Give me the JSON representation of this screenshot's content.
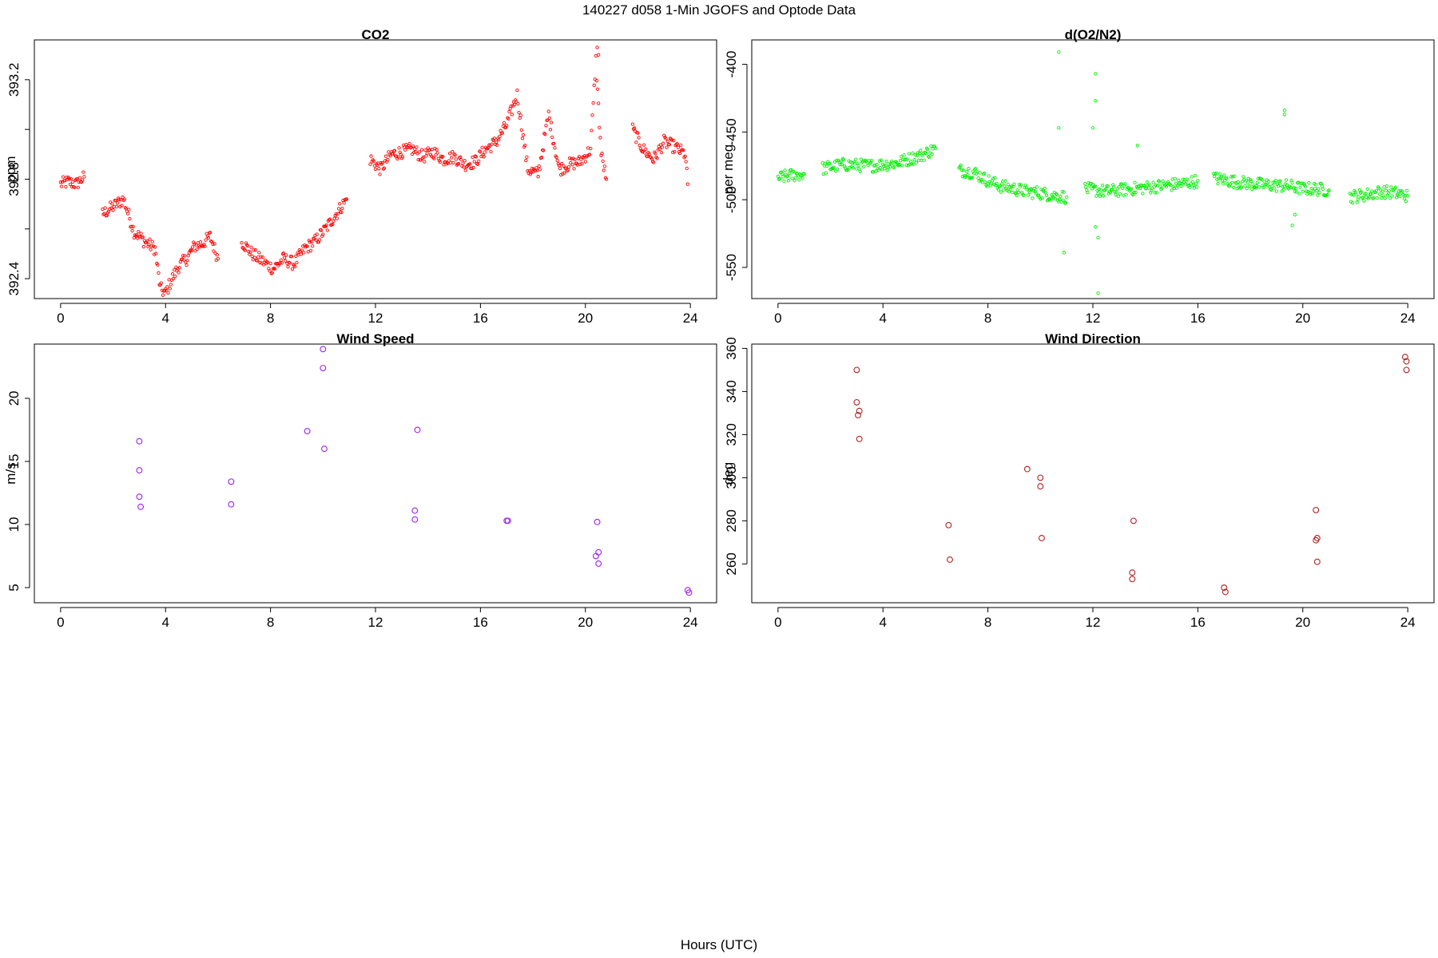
{
  "figure": {
    "title": "140227   d058   1-Min  JGOFS and Optode Data",
    "xlabel": "Hours (UTC)"
  },
  "chart_data": [
    {
      "type": "scatter",
      "title": "CO2",
      "ylabel": "ppm",
      "color": "#ff0000",
      "marker": "open-circle-small",
      "xlim": [
        -1,
        25
      ],
      "ylim": [
        392.32,
        393.36
      ],
      "xticks": [
        0,
        4,
        8,
        12,
        16,
        20,
        24
      ],
      "yticks": [
        392.4,
        392.6,
        392.8,
        393.0,
        393.2
      ],
      "ytick_labels": [
        "392.4",
        "",
        "392.8",
        "",
        "393.2"
      ],
      "series": [
        {
          "segments": [
            {
              "x": [
                0.0,
                0.3,
                0.6,
                0.9
              ],
              "y": [
                392.78,
                392.79,
                392.78,
                392.81
              ]
            },
            {
              "x": [
                1.6,
                2.0,
                2.4,
                2.8,
                3.2,
                3.6,
                3.8,
                4.0,
                4.2,
                4.5,
                4.8,
                5.1,
                5.4,
                5.7,
                6.0
              ],
              "y": [
                392.66,
                392.69,
                392.72,
                392.59,
                392.55,
                392.52,
                392.36,
                392.34,
                392.39,
                392.45,
                392.48,
                392.53,
                392.54,
                392.57,
                392.48
              ]
            },
            {
              "x": [
                6.9,
                7.3,
                7.7,
                8.1,
                8.5,
                8.9,
                9.3,
                9.7,
                10.1,
                10.5,
                10.9
              ],
              "y": [
                392.55,
                392.5,
                392.47,
                392.44,
                392.48,
                392.46,
                392.52,
                392.55,
                392.6,
                392.66,
                392.72
              ]
            },
            {
              "x": [
                11.8,
                12.2,
                12.6,
                13.0,
                13.4,
                13.8,
                14.2,
                14.6,
                15.0,
                15.4,
                15.8,
                16.2,
                16.6,
                17.0,
                17.4,
                17.8,
                18.2,
                18.6,
                19.0,
                19.4,
                19.8,
                20.2,
                20.4,
                20.6,
                20.8
              ],
              "y": [
                392.88,
                392.84,
                392.9,
                392.91,
                392.92,
                392.89,
                392.91,
                392.88,
                392.89,
                392.86,
                392.87,
                392.92,
                392.95,
                393.02,
                393.14,
                392.84,
                392.82,
                393.06,
                392.84,
                392.86,
                392.87,
                392.92,
                393.28,
                392.9,
                392.8
              ]
            },
            {
              "x": [
                21.8,
                22.2,
                22.6,
                23.0,
                23.4,
                23.8,
                23.9
              ],
              "y": [
                393.0,
                392.92,
                392.88,
                392.95,
                392.93,
                392.9,
                392.78
              ]
            }
          ],
          "outliers": {
            "x": [
              20.45,
              20.5
            ],
            "y": [
              393.33,
              393.3
            ]
          }
        }
      ]
    },
    {
      "type": "scatter",
      "title": "d(O2/N2)",
      "ylabel": "per meg",
      "color": "#00ee00",
      "marker": "open-circle-small",
      "xlim": [
        -1,
        25
      ],
      "ylim": [
        -573,
        -382
      ],
      "xticks": [
        0,
        4,
        8,
        12,
        16,
        20,
        24
      ],
      "yticks": [
        -550,
        -500,
        -450,
        -400
      ],
      "ytick_labels": [
        "-550",
        "-500",
        "-450",
        "-400"
      ],
      "series": [
        {
          "segments": [
            {
              "x": [
                0.0,
                0.5,
                1.0
              ],
              "y": [
                -484,
                -482,
                -481
              ]
            },
            {
              "x": [
                1.7,
                2.5,
                3.5,
                4.5,
                5.5,
                6.0
              ],
              "y": [
                -477,
                -474,
                -475,
                -473,
                -467,
                -462
              ]
            },
            {
              "x": [
                6.9,
                7.5,
                8.0,
                8.5,
                9.0,
                9.5,
                10.0,
                10.5,
                11.0
              ],
              "y": [
                -478,
                -480,
                -486,
                -490,
                -492,
                -494,
                -495,
                -497,
                -498
              ]
            },
            {
              "x": [
                11.7,
                12.5,
                13.0,
                13.5,
                14.0,
                14.5,
                15.0,
                15.5,
                16.0
              ],
              "y": [
                -492,
                -494,
                -493,
                -492,
                -491,
                -490,
                -489,
                -488,
                -486
              ]
            },
            {
              "x": [
                16.6,
                17.5,
                18.5,
                19.5,
                20.0,
                20.5,
                21.0
              ],
              "y": [
                -484,
                -487,
                -489,
                -490,
                -492,
                -492,
                -493
              ]
            },
            {
              "x": [
                21.8,
                22.5,
                23.0,
                23.5,
                24.0
              ],
              "y": [
                -498,
                -496,
                -494,
                -495,
                -497
              ]
            }
          ],
          "outliers": {
            "x": [
              10.7,
              10.7,
              10.9,
              12.0,
              12.1,
              12.1,
              12.2,
              12.2,
              12.1,
              13.7,
              19.3,
              19.3,
              19.7,
              19.6
            ],
            "y": [
              -391,
              -447,
              -539,
              -447,
              -427,
              -407,
              -528,
              -569,
              -520,
              -460,
              -437,
              -434,
              -511,
              -519
            ]
          }
        }
      ]
    },
    {
      "type": "scatter",
      "title": "Wind Speed",
      "ylabel": "m/s",
      "color": "#a020f0",
      "marker": "open-circle",
      "xlim": [
        -1,
        25
      ],
      "ylim": [
        3.8,
        24.3
      ],
      "xticks": [
        0,
        4,
        8,
        12,
        16,
        20,
        24
      ],
      "yticks": [
        5,
        10,
        15,
        20
      ],
      "ytick_labels": [
        "5",
        "10",
        "15",
        "20"
      ],
      "series": [
        {
          "x": [
            3.0,
            3.0,
            3.0,
            3.05,
            6.5,
            6.5,
            9.4,
            10.0,
            10.0,
            10.05,
            13.5,
            13.5,
            13.6,
            17.0,
            17.05,
            20.4,
            20.5,
            20.45,
            20.5,
            23.9,
            23.95
          ],
          "y": [
            16.6,
            14.3,
            12.2,
            11.4,
            13.4,
            11.6,
            17.4,
            23.9,
            22.4,
            16.0,
            11.1,
            10.4,
            17.5,
            10.3,
            10.3,
            7.5,
            7.8,
            10.2,
            6.9,
            4.8,
            4.6
          ]
        }
      ]
    },
    {
      "type": "scatter",
      "title": "Wind Direction",
      "ylabel": "deg",
      "color": "#b22222",
      "marker": "open-circle",
      "xlim": [
        -1,
        25
      ],
      "ylim": [
        242,
        362
      ],
      "xticks": [
        0,
        4,
        8,
        12,
        16,
        20,
        24
      ],
      "yticks": [
        260,
        280,
        300,
        320,
        340,
        360
      ],
      "ytick_labels": [
        "260",
        "280",
        "300",
        "320",
        "340",
        "360"
      ],
      "series": [
        {
          "x": [
            3.0,
            3.0,
            3.1,
            3.05,
            3.1,
            6.5,
            6.55,
            9.5,
            10.0,
            10.0,
            10.05,
            13.5,
            13.5,
            13.55,
            17.0,
            17.05,
            20.5,
            20.5,
            20.55,
            20.55,
            23.9,
            23.95,
            23.95
          ],
          "y": [
            350,
            335,
            331,
            329,
            318,
            278,
            262,
            304,
            300,
            296,
            272,
            256,
            253,
            280,
            249,
            247,
            285,
            271,
            272,
            261,
            356,
            354,
            350
          ]
        }
      ]
    }
  ]
}
